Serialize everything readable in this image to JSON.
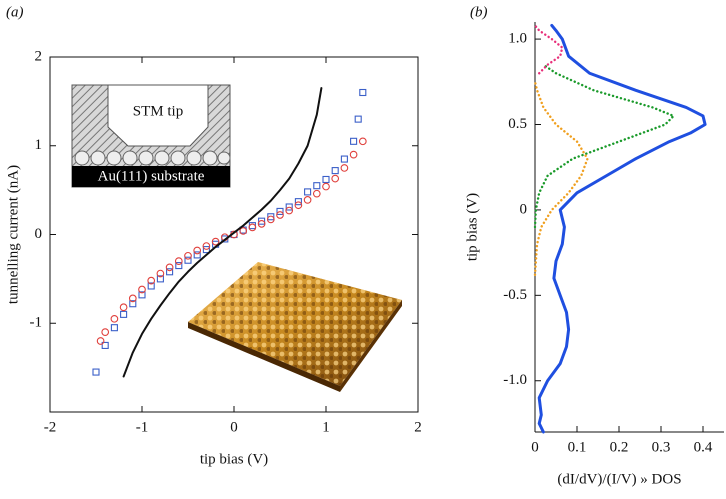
{
  "chart_data": [
    {
      "type": "line",
      "panel_label": "(a)",
      "xlabel": "tip bias (V)",
      "ylabel": "tunnelling current (nA)",
      "annotations": [
        "STM tip",
        "Au(111) substrate"
      ],
      "xlim": [
        -2,
        2
      ],
      "ylim": [
        -2,
        2
      ],
      "xticks": [
        -2,
        -1,
        0,
        1,
        2
      ],
      "yticks": [
        -1,
        0,
        1,
        2
      ],
      "frame": true,
      "series": [
        {
          "style": "square",
          "color": "#3a5fc8",
          "x": [
            -1.5,
            -1.4,
            -1.3,
            -1.2,
            -1.1,
            -1.0,
            -0.9,
            -0.8,
            -0.7,
            -0.6,
            -0.5,
            -0.4,
            -0.3,
            -0.2,
            -0.1,
            0,
            0.1,
            0.2,
            0.3,
            0.4,
            0.5,
            0.6,
            0.7,
            0.8,
            0.9,
            1.0,
            1.1,
            1.2,
            1.3,
            1.35,
            1.4
          ],
          "values": [
            -1.55,
            -1.25,
            -1.05,
            -0.9,
            -0.78,
            -0.68,
            -0.58,
            -0.5,
            -0.42,
            -0.35,
            -0.29,
            -0.23,
            -0.17,
            -0.11,
            -0.05,
            0,
            0.05,
            0.1,
            0.15,
            0.2,
            0.26,
            0.31,
            0.37,
            0.48,
            0.55,
            0.62,
            0.72,
            0.85,
            1.05,
            1.3,
            1.6
          ]
        },
        {
          "style": "circle",
          "color": "#e0403c",
          "x": [
            -1.45,
            -1.4,
            -1.3,
            -1.2,
            -1.1,
            -1.0,
            -0.9,
            -0.8,
            -0.7,
            -0.6,
            -0.5,
            -0.4,
            -0.3,
            -0.2,
            -0.1,
            0,
            0.1,
            0.2,
            0.3,
            0.4,
            0.5,
            0.6,
            0.7,
            0.8,
            0.9,
            1.0,
            1.1,
            1.2,
            1.3,
            1.4
          ],
          "values": [
            -1.2,
            -1.1,
            -0.95,
            -0.82,
            -0.72,
            -0.62,
            -0.52,
            -0.44,
            -0.37,
            -0.3,
            -0.24,
            -0.18,
            -0.13,
            -0.08,
            -0.03,
            0,
            0.04,
            0.08,
            0.12,
            0.17,
            0.22,
            0.27,
            0.33,
            0.39,
            0.46,
            0.54,
            0.63,
            0.75,
            0.9,
            1.05
          ]
        },
        {
          "style": "line",
          "color": "#111111",
          "x": [
            -1.2,
            -1.1,
            -1.0,
            -0.9,
            -0.8,
            -0.7,
            -0.6,
            -0.5,
            -0.4,
            -0.3,
            -0.2,
            -0.1,
            0,
            0.1,
            0.2,
            0.3,
            0.4,
            0.5,
            0.6,
            0.7,
            0.8,
            0.9,
            0.95
          ],
          "values": [
            -1.6,
            -1.33,
            -1.12,
            -0.95,
            -0.8,
            -0.66,
            -0.53,
            -0.42,
            -0.32,
            -0.23,
            -0.14,
            -0.06,
            0.02,
            0.1,
            0.19,
            0.28,
            0.38,
            0.5,
            0.63,
            0.8,
            1.0,
            1.35,
            1.65
          ]
        }
      ]
    },
    {
      "type": "line",
      "orientation": "horizontal",
      "panel_label": "(b)",
      "xlabel": "(dI/dV)/(I/V) » DOS",
      "ylabel": "tip bias (V)",
      "xlim": [
        0,
        0.45
      ],
      "ylim": [
        -1.3,
        1.1
      ],
      "xticks": [
        0,
        0.1,
        0.2,
        0.3,
        0.4
      ],
      "yticks": [
        {
          "value": -1,
          "label": "-1.0"
        },
        -0.5,
        0,
        0.5,
        {
          "value": 1,
          "label": "1.0"
        }
      ],
      "frame": false,
      "series": [
        {
          "style": "solid",
          "color": "#1f4fe0",
          "y": [
            -1.3,
            -1.25,
            -1.2,
            -1.1,
            -1.0,
            -0.9,
            -0.8,
            -0.7,
            -0.6,
            -0.5,
            -0.4,
            -0.3,
            -0.2,
            -0.1,
            0,
            0.1,
            0.2,
            0.3,
            0.4,
            0.45,
            0.5,
            0.55,
            0.6,
            0.7,
            0.8,
            0.9,
            1.0,
            1.05,
            1.08
          ],
          "values": [
            0.02,
            0.01,
            0.015,
            0.01,
            0.03,
            0.06,
            0.075,
            0.08,
            0.075,
            0.06,
            0.045,
            0.05,
            0.065,
            0.07,
            0.06,
            0.1,
            0.17,
            0.24,
            0.32,
            0.37,
            0.405,
            0.4,
            0.36,
            0.24,
            0.13,
            0.08,
            0.065,
            0.05,
            0.04
          ]
        },
        {
          "style": "dotted",
          "color": "#1a9a2a",
          "y": [
            -0.1,
            0,
            0.1,
            0.2,
            0.3,
            0.4,
            0.5,
            0.55,
            0.6,
            0.7,
            0.8,
            0.85
          ],
          "values": [
            0,
            0.002,
            0.01,
            0.03,
            0.09,
            0.2,
            0.31,
            0.33,
            0.28,
            0.14,
            0.05,
            0.02
          ]
        },
        {
          "style": "dotted",
          "color": "#f0a020",
          "y": [
            -0.38,
            -0.2,
            -0.1,
            0,
            0.1,
            0.2,
            0.3,
            0.4,
            0.5,
            0.6,
            0.7,
            0.75
          ],
          "values": [
            0,
            0.005,
            0.015,
            0.04,
            0.08,
            0.11,
            0.125,
            0.1,
            0.05,
            0.02,
            0.005,
            0
          ]
        },
        {
          "style": "dotted",
          "color": "#e8307a",
          "y": [
            0.8,
            0.85,
            0.9,
            0.95,
            1.0,
            1.05,
            1.08
          ],
          "values": [
            0.01,
            0.03,
            0.06,
            0.065,
            0.04,
            0.01,
            0
          ]
        }
      ]
    }
  ]
}
